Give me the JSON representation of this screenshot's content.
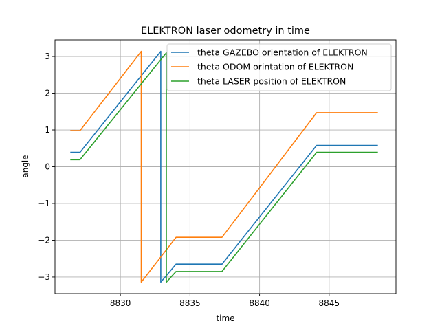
{
  "chart_data": {
    "type": "line",
    "title": "ELEKTRON laser odometry in time",
    "xlabel": "time",
    "ylabel": "angle",
    "xlim": [
      8825.3,
      8849.8
    ],
    "ylim": [
      -3.45,
      3.45
    ],
    "xticks": [
      8830,
      8835,
      8840,
      8845
    ],
    "yticks": [
      -3,
      -2,
      -1,
      0,
      1,
      2,
      3
    ],
    "grid": true,
    "legend_position": "top-right",
    "series": [
      {
        "name": "theta GAZEBO orientation of ELEKTRON",
        "color": "#1f77b4",
        "points": [
          [
            8826.4,
            0.39
          ],
          [
            8827.1,
            0.39
          ],
          [
            8832.9,
            3.14
          ],
          [
            8832.9,
            -3.14
          ],
          [
            8834.0,
            -2.65
          ],
          [
            8837.3,
            -2.65
          ],
          [
            8844.1,
            0.58
          ],
          [
            8848.5,
            0.58
          ]
        ]
      },
      {
        "name": "theta ODOM orintation of ELEKTRON",
        "color": "#ff7f0e",
        "points": [
          [
            8826.4,
            0.98
          ],
          [
            8827.1,
            0.98
          ],
          [
            8831.5,
            3.14
          ],
          [
            8831.5,
            -3.14
          ],
          [
            8834.0,
            -1.92
          ],
          [
            8837.3,
            -1.92
          ],
          [
            8844.1,
            1.47
          ],
          [
            8848.5,
            1.47
          ]
        ]
      },
      {
        "name": "theta LASER position of ELEKTRON",
        "color": "#2ca02c",
        "points": [
          [
            8826.4,
            0.19
          ],
          [
            8827.1,
            0.19
          ],
          [
            8833.3,
            3.1
          ],
          [
            8833.3,
            -3.14
          ],
          [
            8834.0,
            -2.85
          ],
          [
            8837.3,
            -2.85
          ],
          [
            8844.1,
            0.39
          ],
          [
            8848.5,
            0.39
          ]
        ]
      }
    ]
  }
}
